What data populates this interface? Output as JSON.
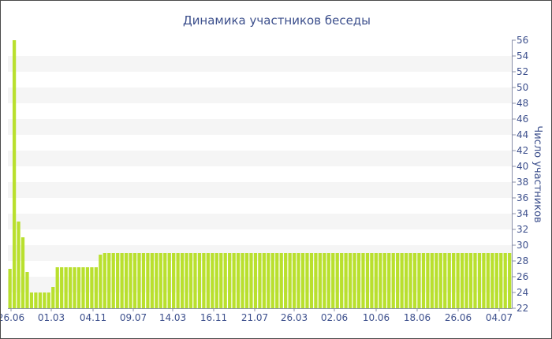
{
  "chart_data": {
    "type": "bar",
    "title": "Динамика участников беседы",
    "xlabel": "",
    "ylabel": "Число участников",
    "ylim": [
      22,
      56
    ],
    "y_ticks": [
      22,
      24,
      26,
      28,
      30,
      32,
      34,
      36,
      38,
      40,
      42,
      44,
      46,
      48,
      50,
      52,
      54,
      56
    ],
    "x_tick_labels": [
      "26.06",
      "01.03",
      "04.11",
      "09.07",
      "14.03",
      "16.11",
      "21.07",
      "26.03",
      "02.06",
      "10.06",
      "18.06",
      "26.06",
      "04.07"
    ],
    "grid": "horizontal alternating bands",
    "bar_color": "#b9e02e",
    "band_color": "#f5f5f5",
    "text_color": "#3c4f8c",
    "values": [
      27,
      56,
      33,
      31,
      26.6,
      24,
      24,
      24,
      24,
      24,
      24.7,
      27.2,
      27.2,
      27.2,
      27.2,
      27.2,
      27.2,
      27.2,
      27.2,
      27.2,
      27.2,
      28.8,
      29,
      29,
      29,
      29,
      29,
      29,
      29,
      29,
      29,
      29,
      29,
      29,
      29,
      29,
      29,
      29,
      29,
      29,
      29,
      29,
      29,
      29,
      29,
      29,
      29,
      29,
      29,
      29,
      29,
      29,
      29,
      29,
      29,
      29,
      29,
      29,
      29,
      29,
      29,
      29,
      29,
      29,
      29,
      29,
      29,
      29,
      29,
      29,
      29,
      29,
      29,
      29,
      29,
      29,
      29,
      29,
      29,
      29,
      29,
      29,
      29,
      29,
      29,
      29,
      29,
      29,
      29,
      29,
      29,
      29,
      29,
      29,
      29,
      29,
      29,
      29,
      29,
      29,
      29,
      29,
      29,
      29,
      29,
      29,
      29,
      29,
      29,
      29,
      29,
      29,
      29,
      29,
      29,
      29,
      29
    ]
  }
}
